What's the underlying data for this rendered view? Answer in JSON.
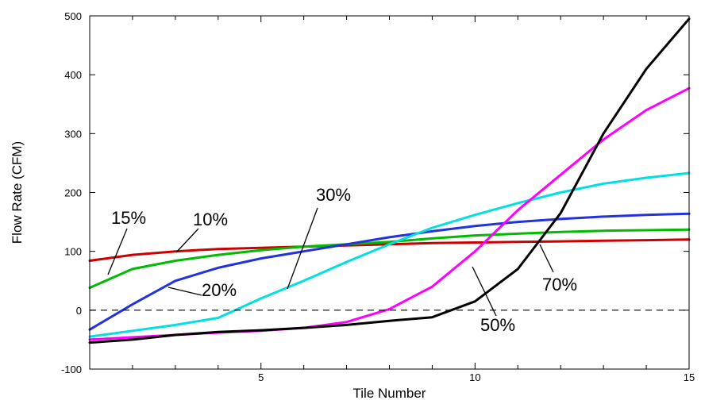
{
  "chart_data": {
    "type": "line",
    "title": "",
    "xlabel": "Tile Number",
    "ylabel": "Flow Rate (CFM)",
    "xlim": [
      1,
      15
    ],
    "ylim": [
      -100,
      500
    ],
    "xticks": [
      {
        "value": 5,
        "label": "5"
      },
      {
        "value": 10,
        "label": "10"
      },
      {
        "value": 15,
        "label": "15"
      }
    ],
    "yticks": [
      {
        "value": -100,
        "label": "-100"
      },
      {
        "value": 0,
        "label": "0"
      },
      {
        "value": 100,
        "label": "100"
      },
      {
        "value": 200,
        "label": "200"
      },
      {
        "value": 300,
        "label": "300"
      },
      {
        "value": 400,
        "label": "400"
      },
      {
        "value": 500,
        "label": "500"
      }
    ],
    "grid": false,
    "reference_line": {
      "y": 0,
      "style": "dashed"
    },
    "x": [
      1,
      2,
      3,
      4,
      5,
      6,
      7,
      8,
      9,
      10,
      11,
      12,
      13,
      14,
      15
    ],
    "series": [
      {
        "name": "15%",
        "color": "#cc0000",
        "values": [
          84,
          94,
          100,
          104,
          106,
          108,
          110,
          112,
          114,
          115,
          116,
          117,
          118,
          119,
          120
        ]
      },
      {
        "name": "10%",
        "color": "#00bb00",
        "values": [
          38,
          70,
          84,
          94,
          102,
          108,
          112,
          116,
          122,
          127,
          130,
          133,
          135,
          136,
          137
        ]
      },
      {
        "name": "20%",
        "color": "#2233dd",
        "values": [
          -33,
          10,
          50,
          72,
          88,
          100,
          112,
          124,
          134,
          143,
          150,
          155,
          159,
          162,
          164
        ]
      },
      {
        "name": "30%",
        "color": "#00e0e0",
        "values": [
          -45,
          -35,
          -25,
          -13,
          20,
          50,
          82,
          112,
          140,
          162,
          182,
          200,
          215,
          225,
          233
        ]
      },
      {
        "name": "50%",
        "color": "#ff00ff",
        "values": [
          -50,
          -46,
          -42,
          -38,
          -35,
          -30,
          -20,
          2,
          40,
          100,
          170,
          230,
          290,
          340,
          377
        ]
      },
      {
        "name": "70%",
        "color": "#000000",
        "values": [
          -55,
          -50,
          -42,
          -37,
          -34,
          -30,
          -25,
          -18,
          -12,
          15,
          70,
          165,
          300,
          410,
          495
        ]
      }
    ],
    "annotations": [
      {
        "text": "15%",
        "series": "15%"
      },
      {
        "text": "10%",
        "series": "10%"
      },
      {
        "text": "20%",
        "series": "20%"
      },
      {
        "text": "30%",
        "series": "30%"
      },
      {
        "text": "50%",
        "series": "50%"
      },
      {
        "text": "70%",
        "series": "70%"
      }
    ]
  }
}
